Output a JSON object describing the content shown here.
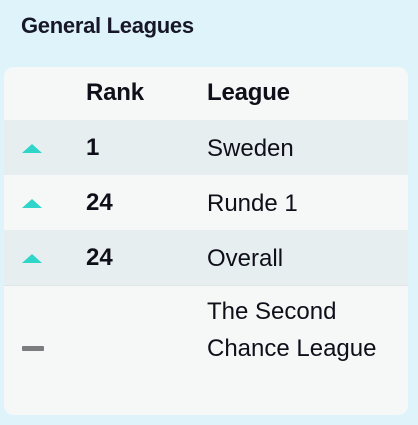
{
  "panel": {
    "title": "General Leagues"
  },
  "table": {
    "headers": {
      "rank": "Rank",
      "league": "League"
    },
    "rows": [
      {
        "movement": "up",
        "rank": "1",
        "league": "Sweden"
      },
      {
        "movement": "up",
        "rank": "24",
        "league": "Runde 1"
      },
      {
        "movement": "up",
        "rank": "24",
        "league": "Overall"
      },
      {
        "movement": "unchanged",
        "rank": "",
        "league": "The Second Chance League"
      }
    ]
  },
  "colors": {
    "background": "#dff4fa",
    "up_indicator": "#2fd5c8",
    "unchanged_indicator": "#7d7d80",
    "row_alt": "#e7eef0",
    "row": "#f6f7f7"
  }
}
